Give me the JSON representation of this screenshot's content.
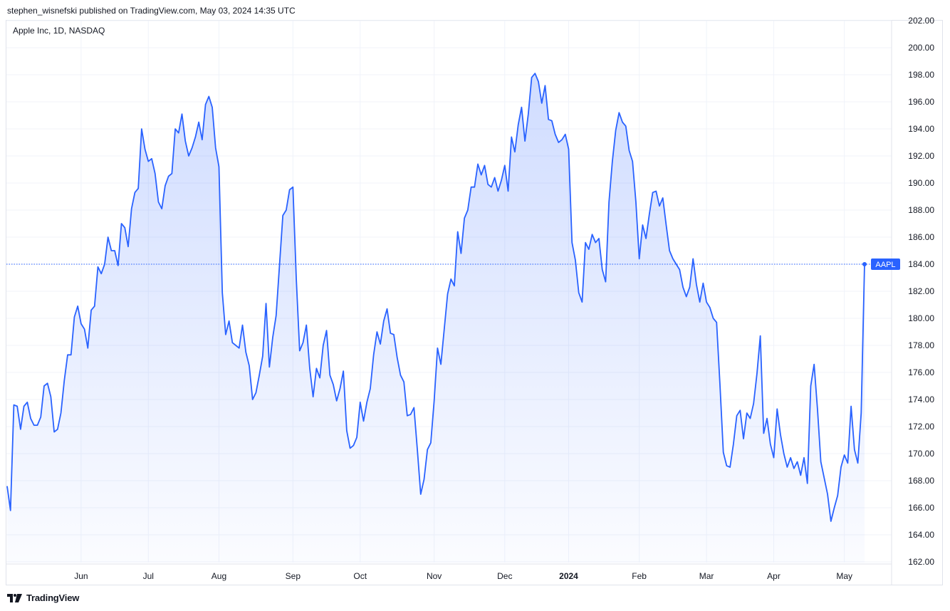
{
  "header": {
    "publisher": "stephen_wisnefski published on TradingView.com, May 03, 2024 14:35 UTC"
  },
  "chart_data": {
    "type": "area",
    "title": "Apple Inc, 1D, NASDAQ",
    "symbol": "AAPL",
    "last_value": 184.0,
    "last_value_label": "AAPL",
    "ylim": [
      161.3,
      202.0
    ],
    "y_ticks": [
      "162.00",
      "164.00",
      "166.00",
      "168.00",
      "170.00",
      "172.00",
      "174.00",
      "176.00",
      "178.00",
      "180.00",
      "182.00",
      "184.00",
      "186.00",
      "188.00",
      "190.00",
      "192.00",
      "194.00",
      "196.00",
      "198.00",
      "200.00",
      "202.00"
    ],
    "x_ticks": [
      {
        "label": "Jun",
        "index": 22,
        "bold": false
      },
      {
        "label": "Jul",
        "index": 42,
        "bold": false
      },
      {
        "label": "Aug",
        "index": 63,
        "bold": false
      },
      {
        "label": "Sep",
        "index": 85,
        "bold": false
      },
      {
        "label": "Oct",
        "index": 105,
        "bold": false
      },
      {
        "label": "Nov",
        "index": 127,
        "bold": false
      },
      {
        "label": "Dec",
        "index": 148,
        "bold": false
      },
      {
        "label": "2024",
        "index": 167,
        "bold": true
      },
      {
        "label": "Feb",
        "index": 188,
        "bold": false
      },
      {
        "label": "Mar",
        "index": 208,
        "bold": false
      },
      {
        "label": "Apr",
        "index": 228,
        "bold": false
      },
      {
        "label": "May",
        "index": 249,
        "bold": false
      }
    ],
    "line_color": "#2962ff",
    "fill_color": "#2962ff",
    "grid": true,
    "values": [
      167.6,
      165.8,
      173.6,
      173.5,
      171.8,
      173.5,
      173.8,
      172.6,
      172.1,
      172.1,
      172.7,
      175.0,
      175.2,
      174.2,
      171.6,
      171.8,
      173.0,
      175.4,
      177.3,
      177.3,
      180.1,
      180.9,
      179.6,
      179.2,
      177.8,
      180.6,
      180.9,
      183.8,
      183.3,
      184.0,
      186.0,
      185.0,
      185.0,
      183.9,
      187.0,
      186.7,
      185.3,
      188.1,
      189.3,
      189.6,
      194.0,
      192.5,
      191.6,
      191.8,
      190.7,
      188.6,
      188.1,
      189.8,
      190.5,
      190.7,
      194.0,
      193.7,
      195.1,
      193.1,
      192.0,
      192.6,
      193.4,
      194.5,
      193.2,
      195.8,
      196.4,
      195.6,
      192.6,
      191.2,
      181.9,
      178.8,
      179.8,
      178.2,
      178.0,
      177.8,
      179.5,
      177.5,
      176.5,
      174.0,
      174.5,
      175.8,
      177.2,
      181.1,
      176.4,
      178.6,
      180.2,
      183.9,
      187.6,
      188.0,
      189.5,
      189.7,
      182.9,
      177.6,
      178.2,
      179.5,
      176.3,
      174.2,
      176.3,
      175.6,
      178.0,
      179.1,
      175.8,
      175.1,
      173.9,
      174.8,
      176.1,
      171.7,
      170.4,
      170.6,
      171.2,
      173.8,
      172.4,
      173.8,
      174.8,
      177.3,
      179.0,
      178.1,
      179.8,
      180.7,
      178.9,
      178.8,
      177.1,
      175.8,
      175.3,
      172.8,
      172.9,
      173.4,
      170.3,
      167.0,
      168.1,
      170.3,
      170.8,
      173.9,
      177.8,
      176.6,
      179.2,
      181.8,
      182.9,
      182.4,
      186.4,
      184.8,
      187.4,
      188.0,
      189.7,
      189.7,
      191.4,
      190.6,
      191.3,
      189.9,
      189.7,
      190.4,
      189.4,
      190.2,
      191.3,
      189.4,
      193.4,
      192.3,
      194.3,
      195.6,
      193.1,
      195.1,
      197.8,
      198.1,
      197.5,
      195.9,
      197.2,
      194.7,
      194.6,
      193.6,
      193.0,
      193.2,
      193.6,
      192.5,
      185.6,
      184.3,
      181.9,
      181.2,
      185.6,
      185.1,
      186.2,
      185.6,
      185.9,
      183.6,
      182.7,
      188.6,
      191.6,
      193.9,
      195.2,
      194.5,
      194.2,
      192.4,
      191.6,
      188.6,
      184.4,
      186.9,
      185.9,
      187.7,
      189.3,
      189.4,
      188.3,
      188.9,
      186.9,
      185.0,
      184.4,
      184.0,
      183.6,
      182.3,
      181.6,
      182.3,
      184.4,
      182.5,
      181.2,
      182.6,
      181.2,
      180.8,
      180.0,
      179.7,
      175.1,
      170.1,
      169.1,
      169.0,
      170.7,
      172.8,
      173.2,
      171.1,
      173.0,
      172.6,
      173.7,
      175.9,
      178.7,
      171.5,
      172.6,
      170.7,
      169.7,
      173.3,
      171.4,
      170.0,
      169.0,
      169.7,
      168.9,
      169.4,
      168.4,
      169.7,
      167.8,
      175.0,
      176.6,
      173.3,
      169.4,
      168.2,
      167.0,
      165.0,
      166.0,
      166.9,
      169.0,
      169.9,
      169.3,
      173.5,
      170.3,
      169.3,
      173.0,
      184.0
    ]
  }
}
